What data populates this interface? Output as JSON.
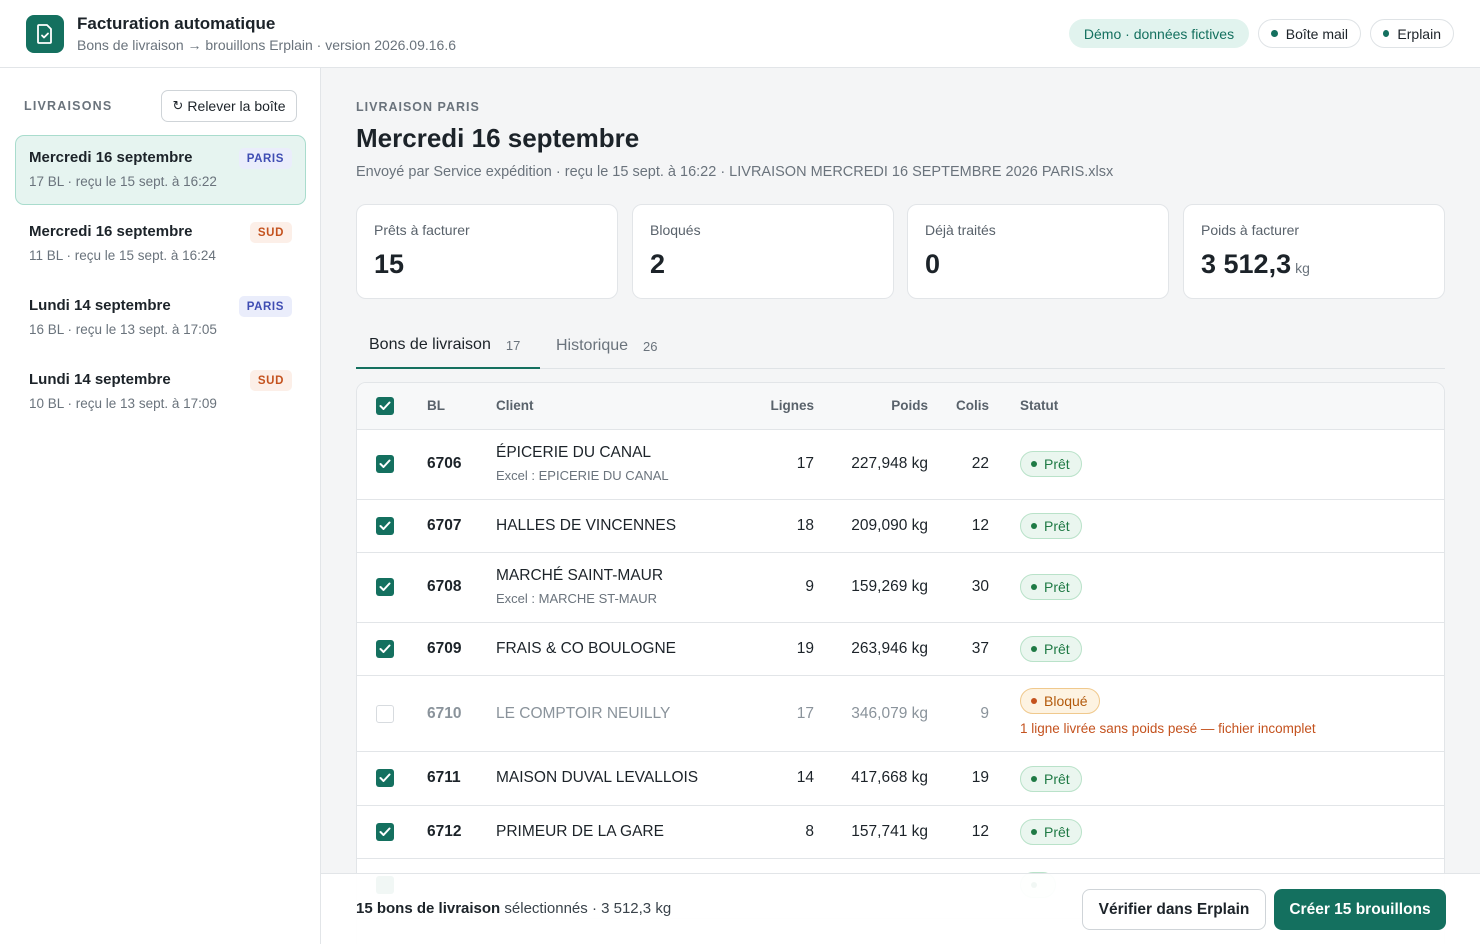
{
  "header": {
    "title": "Facturation automatique",
    "subtitle": "Bons de livraison → brouillons Erplain · version 2026.09.16.6",
    "demo_badge": "Démo · données fictives",
    "mail_status": "Boîte mail",
    "erp_status": "Erplain",
    "status_color": "#14705f"
  },
  "sidebar": {
    "section_label": "LIVRAISONS",
    "refresh_label": "Relever la boîte",
    "items": [
      {
        "title": "Mercredi 16 septembre",
        "meta": "17 BL · reçu le 15 sept. à 16:22",
        "tag": "PARIS",
        "active": true
      },
      {
        "title": "Mercredi 16 septembre",
        "meta": "11 BL · reçu le 15 sept. à 16:24",
        "tag": "SUD",
        "active": false
      },
      {
        "title": "Lundi 14 septembre",
        "meta": "16 BL · reçu le 13 sept. à 17:05",
        "tag": "PARIS",
        "active": false
      },
      {
        "title": "Lundi 14 septembre",
        "meta": "10 BL · reçu le 13 sept. à 17:09",
        "tag": "SUD",
        "active": false
      }
    ]
  },
  "main": {
    "eyebrow": "LIVRAISON PARIS",
    "title": "Mercredi 16 septembre",
    "meta": "Envoyé par Service expédition · reçu le 15 sept. à 16:22 · LIVRAISON MERCREDI 16 SEPTEMBRE 2026 PARIS.xlsx",
    "stats": [
      {
        "label": "Prêts à facturer",
        "value": "15",
        "unit": ""
      },
      {
        "label": "Bloqués",
        "value": "2",
        "unit": ""
      },
      {
        "label": "Déjà traités",
        "value": "0",
        "unit": ""
      },
      {
        "label": "Poids à facturer",
        "value": "3 512,3",
        "unit": "kg"
      }
    ],
    "tabs": [
      {
        "label": "Bons de livraison",
        "count": "17"
      },
      {
        "label": "Historique",
        "count": "26"
      }
    ],
    "table": {
      "headers": {
        "bl": "BL",
        "client": "Client",
        "lines": "Lignes",
        "weight": "Poids",
        "colis": "Colis",
        "status": "Statut"
      },
      "rows": [
        {
          "checked": true,
          "bl": "6706",
          "client": "ÉPICERIE DU CANAL",
          "sub": "Excel : EPICERIE DU CANAL",
          "lines": "17",
          "weight": "227,948 kg",
          "colis": "22",
          "status": "Prêt"
        },
        {
          "checked": true,
          "bl": "6707",
          "client": "HALLES DE VINCENNES",
          "sub": "",
          "lines": "18",
          "weight": "209,090 kg",
          "colis": "12",
          "status": "Prêt"
        },
        {
          "checked": true,
          "bl": "6708",
          "client": "MARCHÉ SAINT-MAUR",
          "sub": "Excel : MARCHE ST-MAUR",
          "lines": "9",
          "weight": "159,269 kg",
          "colis": "30",
          "status": "Prêt"
        },
        {
          "checked": true,
          "bl": "6709",
          "client": "FRAIS & CO BOULOGNE",
          "sub": "",
          "lines": "19",
          "weight": "263,946 kg",
          "colis": "37",
          "status": "Prêt"
        },
        {
          "checked": false,
          "bl": "6710",
          "client": "LE COMPTOIR NEUILLY",
          "sub": "",
          "lines": "17",
          "weight": "346,079 kg",
          "colis": "9",
          "status": "Bloqué",
          "note": "1 ligne livrée sans poids pesé — fichier incomplet"
        },
        {
          "checked": true,
          "bl": "6711",
          "client": "MAISON DUVAL LEVALLOIS",
          "sub": "",
          "lines": "14",
          "weight": "417,668 kg",
          "colis": "19",
          "status": "Prêt"
        },
        {
          "checked": true,
          "bl": "6712",
          "client": "PRIMEUR DE LA GARE",
          "sub": "",
          "lines": "8",
          "weight": "157,741 kg",
          "colis": "12",
          "status": "Prêt"
        }
      ]
    }
  },
  "footer": {
    "selected_bold": "15 bons de livraison",
    "selected_rest": "sélectionnés · 3 512,3 kg",
    "verify_label": "Vérifier dans Erplain",
    "create_label": "Créer 15 brouillons"
  }
}
